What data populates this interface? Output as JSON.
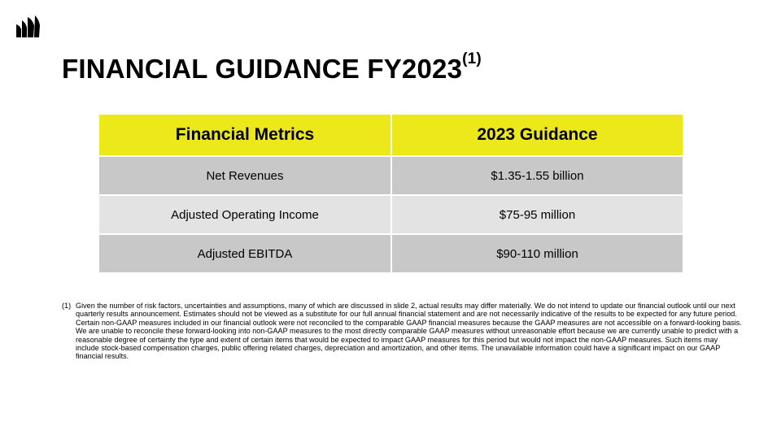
{
  "logo": {
    "icon": "corsair-sails-logo-icon",
    "color": "#000000"
  },
  "title": {
    "main": "FINANCIAL GUIDANCE FY2023",
    "superscript": "(1)"
  },
  "table": {
    "headers": [
      "Financial Metrics",
      "2023 Guidance"
    ],
    "rows": [
      [
        "Net Revenues",
        "$1.35-1.55 billion"
      ],
      [
        "Adjusted Operating Income",
        "$75-95 million"
      ],
      [
        "Adjusted EBITDA",
        "$90-110 million"
      ]
    ],
    "header_color": "#ece81a",
    "row_colors": [
      "#c8c8c8",
      "#e4e3e3",
      "#c8c8c8"
    ]
  },
  "footnote": {
    "marker": "(1)",
    "text": "Given the number of risk factors, uncertainties and assumptions, many of which are discussed in slide 2, actual results may differ materially. We do not intend to update our financial outlook until our next quarterly results announcement. Estimates should not be viewed as a substitute for our full annual financial statement and are not necessarily indicative of the results to be expected for any future period. Certain non-GAAP measures included in our financial outlook were not reconciled to the comparable GAAP financial measures because the GAAP measures are not accessible on a forward-looking basis. We are unable to reconcile these forward-looking into non-GAAP measures to the most directly comparable GAAP measures without unreasonable effort because we are currently unable to predict with a reasonable degree of certainty the type and extent of certain items that would be expected to impact GAAP measures for this period but would not impact the non-GAAP measures. Such items may include stock-based compensation charges, public offering related charges, depreciation and amortization, and other items. The unavailable information could have a significant impact on our GAAP financial results."
  }
}
